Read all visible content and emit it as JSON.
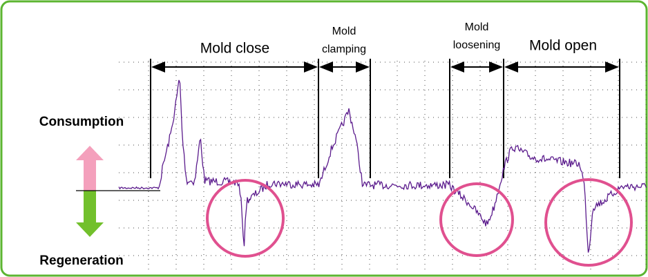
{
  "phases": [
    {
      "lines": [
        "Mold close"
      ]
    },
    {
      "lines": [
        "Mold",
        "clamping"
      ]
    },
    {
      "lines": [
        "Mold",
        "loosening"
      ]
    },
    {
      "lines": [
        "Mold open"
      ]
    }
  ],
  "side_labels": {
    "top": "Consumption",
    "bottom": "Regeneration"
  }
}
